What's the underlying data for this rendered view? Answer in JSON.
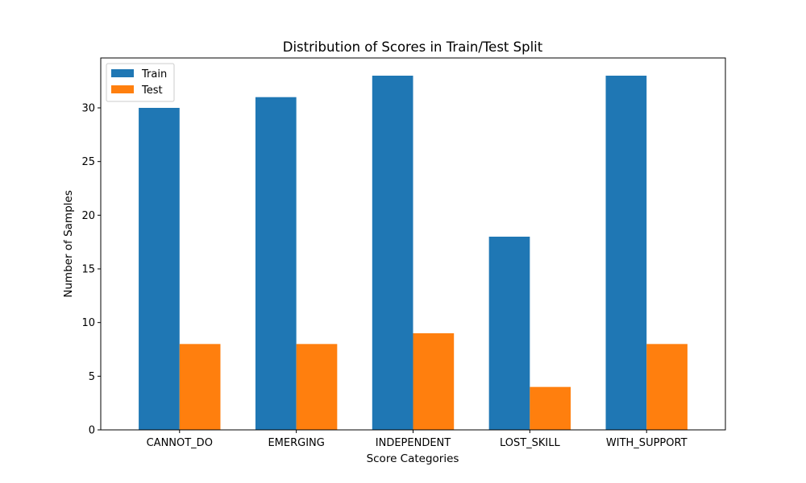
{
  "chart_data": {
    "type": "bar",
    "title": "Distribution of Scores in Train/Test Split",
    "xlabel": "Score Categories",
    "ylabel": "Number of Samples",
    "categories": [
      "CANNOT_DO",
      "EMERGING",
      "INDEPENDENT",
      "LOST_SKILL",
      "WITH_SUPPORT"
    ],
    "series": [
      {
        "name": "Train",
        "values": [
          30,
          31,
          33,
          18,
          33
        ],
        "color": "#1f77b4"
      },
      {
        "name": "Test",
        "values": [
          8,
          8,
          9,
          4,
          8
        ],
        "color": "#ff7f0e"
      }
    ],
    "ylim": [
      0,
      34.65
    ],
    "yticks": [
      0,
      5,
      10,
      15,
      20,
      25,
      30
    ],
    "grid": false,
    "legend": "top-left"
  }
}
